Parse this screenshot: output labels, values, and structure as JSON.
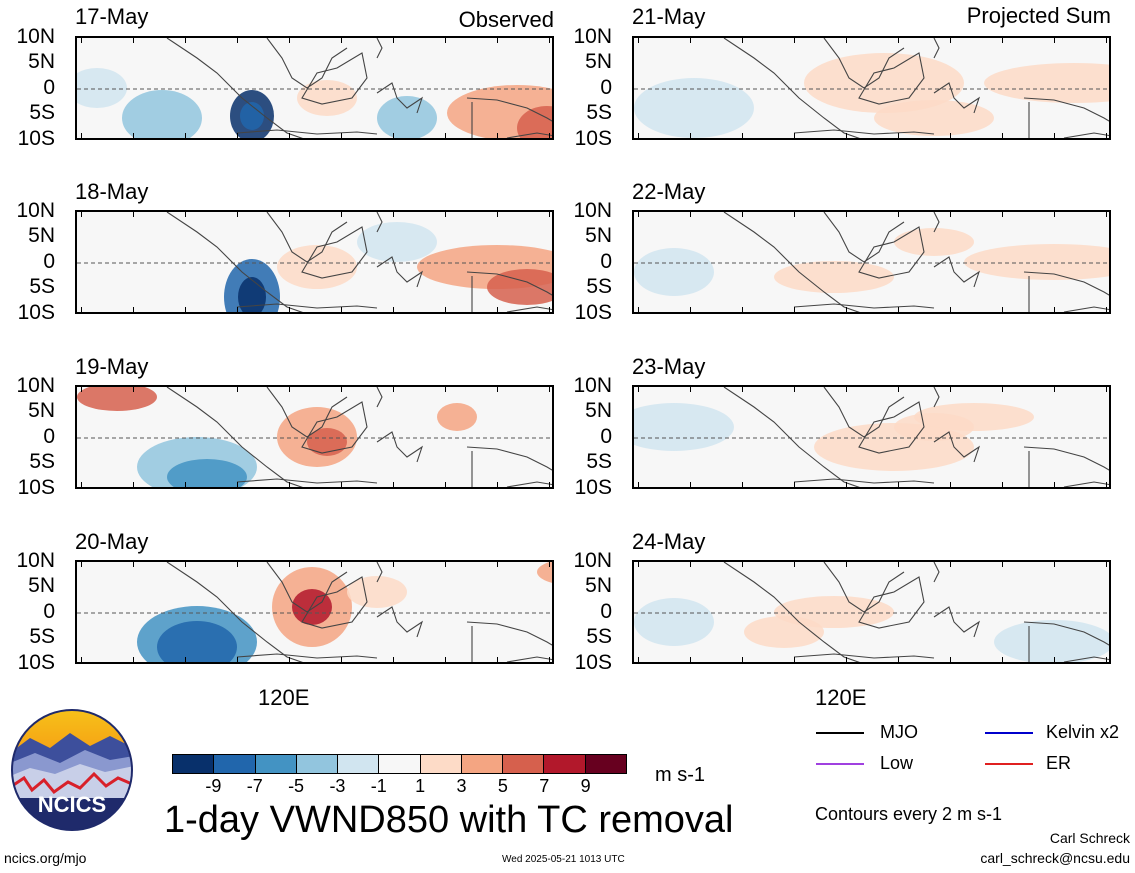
{
  "header": {
    "left_tag": "Observed",
    "right_tag": "Projected Sum"
  },
  "lat_labels": [
    "10N",
    "5N",
    "0",
    "5S",
    "10S"
  ],
  "lon_label": "120E",
  "panels": {
    "observed": [
      {
        "date": "17-May"
      },
      {
        "date": "18-May"
      },
      {
        "date": "19-May"
      },
      {
        "date": "20-May"
      }
    ],
    "projected": [
      {
        "date": "21-May"
      },
      {
        "date": "22-May"
      },
      {
        "date": "23-May"
      },
      {
        "date": "24-May"
      }
    ]
  },
  "colorbar": {
    "colors": [
      "#08306b",
      "#2166ac",
      "#4393c3",
      "#92c5de",
      "#d1e5f0",
      "#f7f7f7",
      "#fddbc7",
      "#f4a582",
      "#d6604d",
      "#b2182b",
      "#67001f"
    ],
    "ticks": [
      "-9",
      "-7",
      "-5",
      "-3",
      "-1",
      "1",
      "3",
      "5",
      "7",
      "9"
    ],
    "units": "m s-1"
  },
  "title": "1-day VWND850 with TC removal",
  "legend": {
    "items": [
      {
        "label": "MJO",
        "color": "#000000"
      },
      {
        "label": "Kelvin x2",
        "color": "#0000cc"
      },
      {
        "label": "Low",
        "color": "#a040e0"
      },
      {
        "label": "ER",
        "color": "#e02020"
      }
    ],
    "contours_note": "Contours every 2 m s-1"
  },
  "footer": {
    "left": "ncics.org/mjo",
    "center": "Wed 2025-05-21 1013 UTC",
    "author": "Carl Schreck",
    "email": "carl_schreck@ncsu.edu"
  },
  "logo": {
    "text": "NCICS"
  }
}
